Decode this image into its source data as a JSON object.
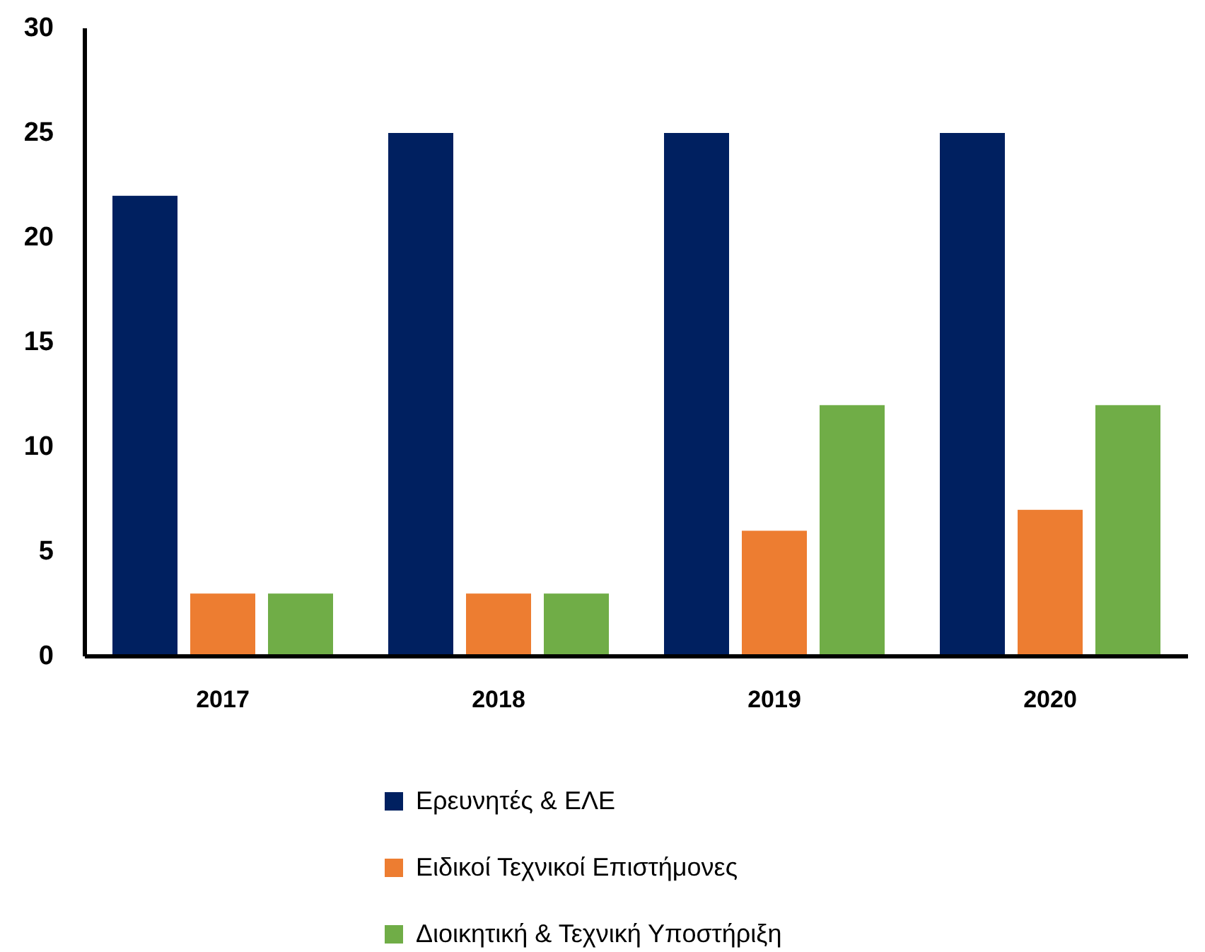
{
  "chart_data": {
    "type": "bar",
    "categories": [
      "2017",
      "2018",
      "2019",
      "2020"
    ],
    "series": [
      {
        "name": "Ερευνητές  & ΕΛΕ",
        "color": "#002060",
        "values": [
          22,
          25,
          25,
          25
        ]
      },
      {
        "name": "Ειδικοί Τεχνικοί Επιστήμονες",
        "color": "#ed7d31",
        "values": [
          3,
          3,
          6,
          7
        ]
      },
      {
        "name": "Διοικητική  & Τεχνική Υποστήριξη",
        "color": "#70ad47",
        "values": [
          3,
          3,
          12,
          12
        ]
      }
    ],
    "ylim": [
      0,
      30
    ],
    "yticks": [
      0,
      5,
      10,
      15,
      20,
      25,
      30
    ],
    "grid": false,
    "legend": "bottom"
  }
}
